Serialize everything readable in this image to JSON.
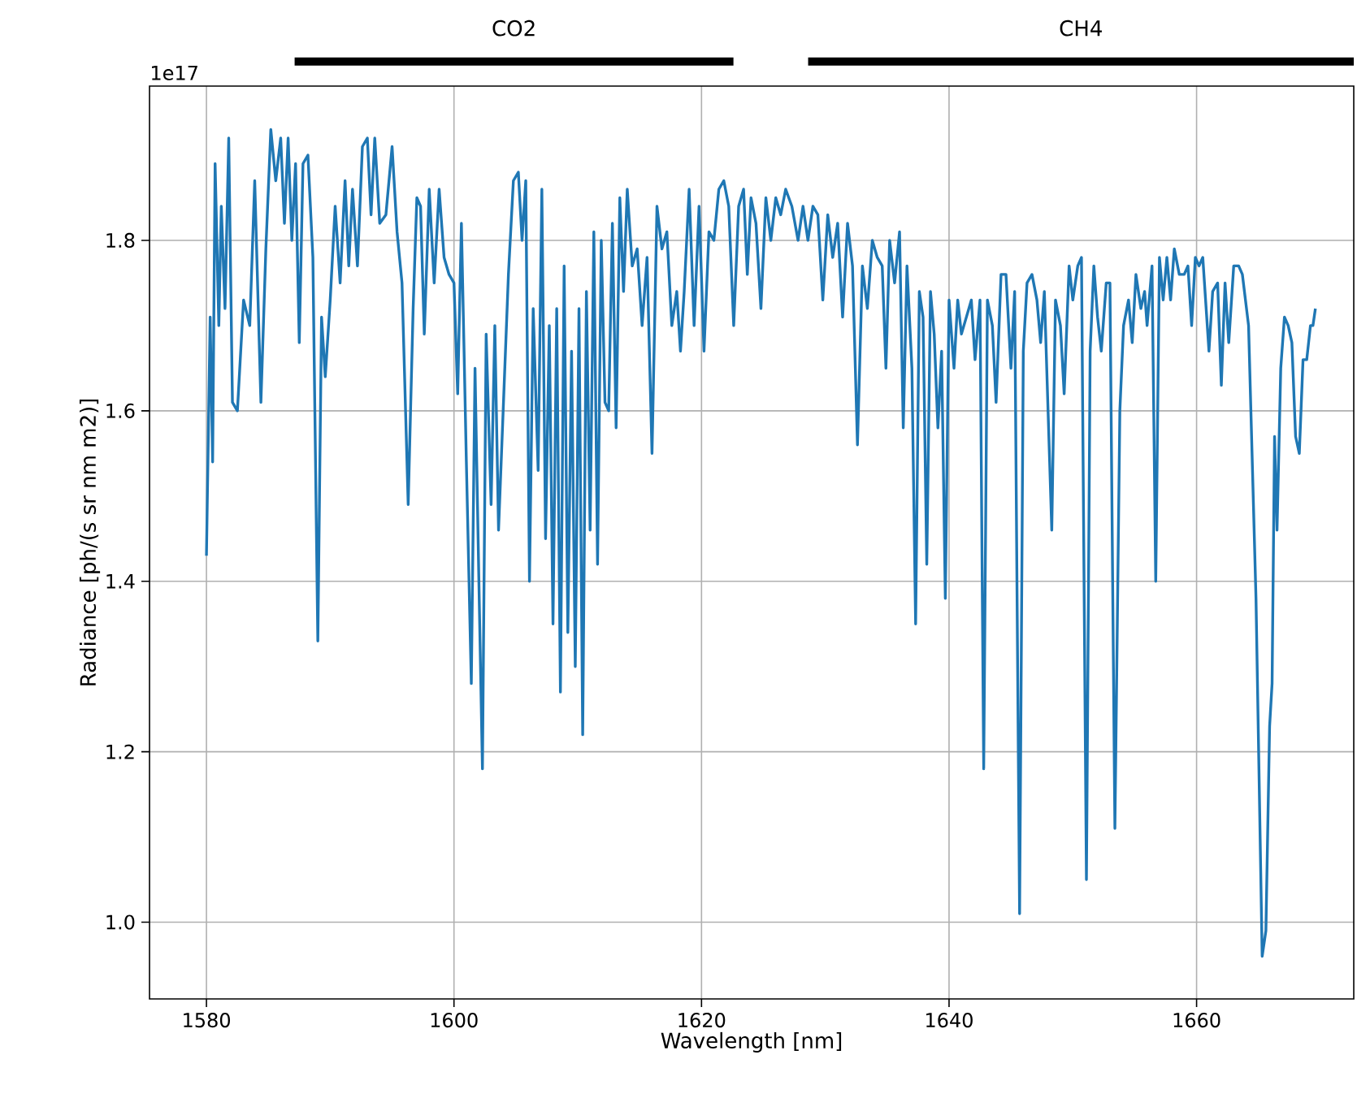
{
  "chart_data": {
    "type": "line",
    "xlabel": "Wavelength [nm]",
    "ylabel": "Radiance [ph/(s sr nm m2)]",
    "annotations": [
      "1e17",
      "CO2",
      "CH4"
    ],
    "xlim": [
      1575.4,
      1672.7
    ],
    "ylim": [
      0.91,
      1.981
    ],
    "xticks": [
      1580,
      1600,
      1620,
      1640,
      1660
    ],
    "yticks": [
      {
        "value": 1.0,
        "label": "1.0"
      },
      {
        "value": 1.2,
        "label": "1.2"
      },
      {
        "value": 1.4,
        "label": "1.4"
      },
      {
        "value": 1.6,
        "label": "1.6"
      },
      {
        "value": 1.8,
        "label": "1.8"
      }
    ],
    "grid": true,
    "series": [
      {
        "color": "#1f77b4",
        "x": [
          1580.0,
          1580.3,
          1580.5,
          1580.7,
          1581.0,
          1581.2,
          1581.5,
          1581.8,
          1582.1,
          1582.5,
          1583.0,
          1583.5,
          1583.9,
          1584.4,
          1584.8,
          1585.2,
          1585.6,
          1586.0,
          1586.3,
          1586.6,
          1586.9,
          1587.2,
          1587.5,
          1587.8,
          1588.2,
          1588.6,
          1589.0,
          1589.3,
          1589.6,
          1590.0,
          1590.4,
          1590.8,
          1591.2,
          1591.5,
          1591.8,
          1592.2,
          1592.6,
          1593.0,
          1593.3,
          1593.6,
          1594.0,
          1594.5,
          1595.0,
          1595.4,
          1595.8,
          1596.3,
          1596.7,
          1597.0,
          1597.3,
          1597.6,
          1598.0,
          1598.4,
          1598.8,
          1599.2,
          1599.6,
          1600.0,
          1600.3,
          1600.6,
          1601.0,
          1601.4,
          1601.7,
          1602.0,
          1602.3,
          1602.6,
          1603.0,
          1603.3,
          1603.6,
          1604.0,
          1604.4,
          1604.8,
          1605.2,
          1605.5,
          1605.8,
          1606.1,
          1606.4,
          1606.8,
          1607.1,
          1607.4,
          1607.7,
          1608.0,
          1608.3,
          1608.6,
          1608.9,
          1609.2,
          1609.5,
          1609.8,
          1610.1,
          1610.4,
          1610.7,
          1611.0,
          1611.3,
          1611.6,
          1611.9,
          1612.2,
          1612.5,
          1612.8,
          1613.1,
          1613.4,
          1613.7,
          1614.0,
          1614.4,
          1614.8,
          1615.2,
          1615.6,
          1616.0,
          1616.4,
          1616.8,
          1617.2,
          1617.6,
          1618.0,
          1618.3,
          1618.6,
          1619.0,
          1619.4,
          1619.8,
          1620.2,
          1620.6,
          1621.0,
          1621.4,
          1621.8,
          1622.2,
          1622.6,
          1623.0,
          1623.4,
          1623.7,
          1624.0,
          1624.4,
          1624.8,
          1625.2,
          1625.6,
          1626.0,
          1626.4,
          1626.8,
          1627.3,
          1627.8,
          1628.2,
          1628.6,
          1629.0,
          1629.4,
          1629.8,
          1630.2,
          1630.6,
          1631.0,
          1631.4,
          1631.8,
          1632.2,
          1632.6,
          1633.0,
          1633.4,
          1633.8,
          1634.2,
          1634.6,
          1634.9,
          1635.2,
          1635.6,
          1636.0,
          1636.3,
          1636.6,
          1637.0,
          1637.3,
          1637.6,
          1637.9,
          1638.2,
          1638.5,
          1638.8,
          1639.1,
          1639.4,
          1639.7,
          1640.0,
          1640.4,
          1640.7,
          1641.0,
          1641.4,
          1641.8,
          1642.1,
          1642.5,
          1642.8,
          1643.1,
          1643.5,
          1643.8,
          1644.2,
          1644.6,
          1645.0,
          1645.3,
          1645.7,
          1646.0,
          1646.3,
          1646.7,
          1647.1,
          1647.4,
          1647.7,
          1648.0,
          1648.3,
          1648.6,
          1649.0,
          1649.3,
          1649.7,
          1650.0,
          1650.4,
          1650.7,
          1651.1,
          1651.4,
          1651.7,
          1652.0,
          1652.3,
          1652.7,
          1653.0,
          1653.4,
          1653.8,
          1654.1,
          1654.5,
          1654.8,
          1655.1,
          1655.5,
          1655.8,
          1656.0,
          1656.4,
          1656.7,
          1657.0,
          1657.3,
          1657.6,
          1657.9,
          1658.2,
          1658.6,
          1659.0,
          1659.3,
          1659.6,
          1659.9,
          1660.2,
          1660.5,
          1661.0,
          1661.3,
          1661.7,
          1662.0,
          1662.3,
          1662.6,
          1663.0,
          1663.4,
          1663.7,
          1664.2,
          1664.8,
          1665.3,
          1665.6,
          1665.9,
          1666.1,
          1666.3,
          1666.5,
          1666.8,
          1667.1,
          1667.4,
          1667.7,
          1668.0,
          1668.3,
          1668.6,
          1668.9,
          1669.2,
          1669.4,
          1669.6
        ],
        "values": [
          1.43,
          1.71,
          1.54,
          1.89,
          1.7,
          1.84,
          1.72,
          1.92,
          1.61,
          1.6,
          1.73,
          1.7,
          1.87,
          1.61,
          1.79,
          1.93,
          1.87,
          1.92,
          1.82,
          1.92,
          1.8,
          1.89,
          1.68,
          1.89,
          1.9,
          1.78,
          1.33,
          1.71,
          1.64,
          1.73,
          1.84,
          1.75,
          1.87,
          1.77,
          1.86,
          1.77,
          1.91,
          1.92,
          1.83,
          1.92,
          1.82,
          1.83,
          1.91,
          1.81,
          1.75,
          1.49,
          1.72,
          1.85,
          1.84,
          1.69,
          1.86,
          1.75,
          1.86,
          1.78,
          1.76,
          1.75,
          1.62,
          1.82,
          1.54,
          1.28,
          1.65,
          1.41,
          1.18,
          1.69,
          1.49,
          1.7,
          1.46,
          1.61,
          1.76,
          1.87,
          1.88,
          1.8,
          1.87,
          1.4,
          1.72,
          1.53,
          1.86,
          1.45,
          1.7,
          1.35,
          1.72,
          1.27,
          1.77,
          1.34,
          1.67,
          1.3,
          1.72,
          1.22,
          1.74,
          1.46,
          1.81,
          1.42,
          1.8,
          1.61,
          1.6,
          1.82,
          1.58,
          1.85,
          1.74,
          1.86,
          1.77,
          1.79,
          1.7,
          1.78,
          1.55,
          1.84,
          1.79,
          1.81,
          1.7,
          1.74,
          1.67,
          1.74,
          1.86,
          1.7,
          1.84,
          1.67,
          1.81,
          1.8,
          1.86,
          1.87,
          1.84,
          1.7,
          1.84,
          1.86,
          1.76,
          1.85,
          1.82,
          1.72,
          1.85,
          1.8,
          1.85,
          1.83,
          1.86,
          1.84,
          1.8,
          1.84,
          1.8,
          1.84,
          1.83,
          1.73,
          1.83,
          1.78,
          1.82,
          1.71,
          1.82,
          1.77,
          1.56,
          1.77,
          1.72,
          1.8,
          1.78,
          1.77,
          1.65,
          1.8,
          1.75,
          1.81,
          1.58,
          1.77,
          1.65,
          1.35,
          1.74,
          1.71,
          1.42,
          1.74,
          1.69,
          1.58,
          1.67,
          1.38,
          1.73,
          1.65,
          1.73,
          1.69,
          1.71,
          1.73,
          1.66,
          1.73,
          1.18,
          1.73,
          1.7,
          1.61,
          1.76,
          1.76,
          1.65,
          1.74,
          1.01,
          1.67,
          1.75,
          1.76,
          1.73,
          1.68,
          1.74,
          1.6,
          1.46,
          1.73,
          1.7,
          1.62,
          1.77,
          1.73,
          1.77,
          1.78,
          1.05,
          1.67,
          1.77,
          1.71,
          1.67,
          1.75,
          1.75,
          1.11,
          1.6,
          1.7,
          1.73,
          1.68,
          1.76,
          1.72,
          1.74,
          1.7,
          1.77,
          1.4,
          1.78,
          1.73,
          1.78,
          1.73,
          1.79,
          1.76,
          1.76,
          1.77,
          1.7,
          1.78,
          1.77,
          1.78,
          1.67,
          1.74,
          1.75,
          1.63,
          1.75,
          1.68,
          1.77,
          1.77,
          1.76,
          1.7,
          1.38,
          0.96,
          0.99,
          1.23,
          1.28,
          1.57,
          1.46,
          1.65,
          1.71,
          1.7,
          1.68,
          1.57,
          1.55,
          1.66,
          1.66,
          1.7,
          1.7,
          1.72
        ]
      }
    ]
  }
}
